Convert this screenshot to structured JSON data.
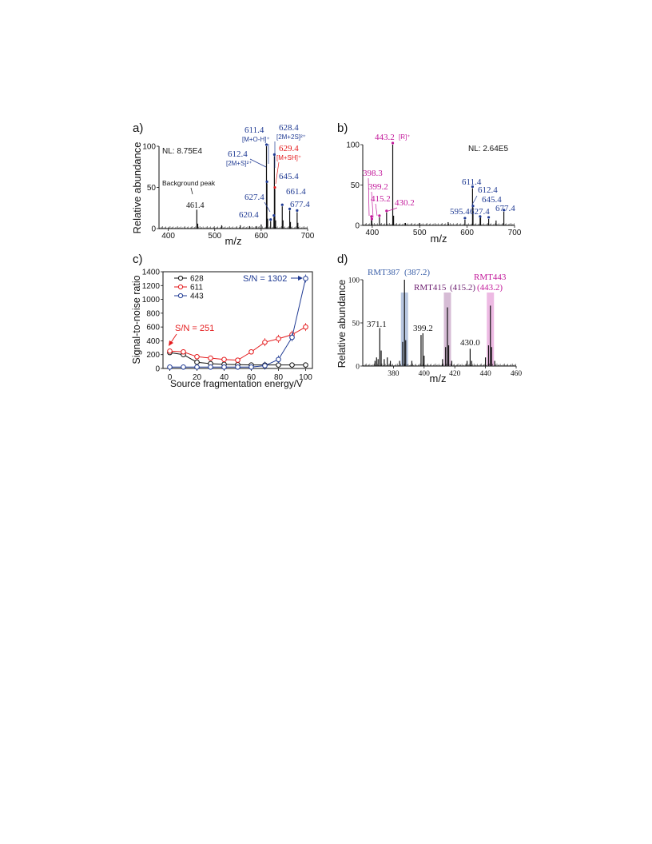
{
  "panel_labels": [
    "a)",
    "b)",
    "c)",
    "d)"
  ],
  "colors": {
    "black": "#111111",
    "blue": "#1f3a93",
    "red": "#e41a1c",
    "magenta": "#c2189a",
    "purple": "#6a1b6e",
    "band_blue": "#9fb3d6",
    "band_purple": "#c8a6c7",
    "band_pink": "#e7a3d9"
  },
  "chart_data": [
    {
      "panel": "a)",
      "type": "line",
      "subtype": "mass-spectrum",
      "xlabel": "m/z",
      "ylabel": "Relative abundance",
      "xlim": [
        380,
        700
      ],
      "ylim": [
        0,
        100
      ],
      "xticks": [
        400,
        500,
        600,
        700
      ],
      "yticks": [
        0,
        50,
        100
      ],
      "note": "NL: 8.75E4",
      "peaks": [
        {
          "x": 461.4,
          "y": 23
        },
        {
          "x": 463.4,
          "y": 6
        },
        {
          "x": 515,
          "y": 4
        },
        {
          "x": 555,
          "y": 4
        },
        {
          "x": 575,
          "y": 3
        },
        {
          "x": 590,
          "y": 3
        },
        {
          "x": 600,
          "y": 5
        },
        {
          "x": 611.4,
          "y": 100
        },
        {
          "x": 612.4,
          "y": 55
        },
        {
          "x": 614,
          "y": 12
        },
        {
          "x": 620.4,
          "y": 9
        },
        {
          "x": 627.4,
          "y": 14
        },
        {
          "x": 628.4,
          "y": 88
        },
        {
          "x": 629.4,
          "y": 48
        },
        {
          "x": 631,
          "y": 10
        },
        {
          "x": 645.4,
          "y": 27
        },
        {
          "x": 647,
          "y": 10
        },
        {
          "x": 661.4,
          "y": 22
        },
        {
          "x": 663,
          "y": 8
        },
        {
          "x": 677.4,
          "y": 20
        },
        {
          "x": 679,
          "y": 7
        }
      ],
      "annotations": [
        {
          "text": "Background peak",
          "color": "black"
        },
        {
          "text": "461.4",
          "color": "black"
        },
        {
          "text": "611.4",
          "color": "blue"
        },
        {
          "text": "[M+O-H]⁺",
          "color": "blue"
        },
        {
          "text": "628.4",
          "color": "blue"
        },
        {
          "text": "[2M+2S]²⁺",
          "color": "blue"
        },
        {
          "text": "612.4",
          "color": "blue"
        },
        {
          "text": "[2M+S]²⁺",
          "color": "blue"
        },
        {
          "text": "629.4",
          "color": "red"
        },
        {
          "text": "[M+SH]⁺",
          "color": "red"
        },
        {
          "text": "645.4",
          "color": "blue"
        },
        {
          "text": "627.4",
          "color": "blue"
        },
        {
          "text": "661.4",
          "color": "blue"
        },
        {
          "text": "677.4",
          "color": "blue"
        },
        {
          "text": "620.4",
          "color": "blue"
        }
      ]
    },
    {
      "panel": "b)",
      "type": "line",
      "subtype": "mass-spectrum",
      "xlabel": "m/z",
      "ylabel": "",
      "xlim": [
        380,
        700
      ],
      "ylim": [
        0,
        100
      ],
      "xticks": [
        400,
        500,
        600,
        700
      ],
      "yticks": [
        0,
        50,
        100
      ],
      "note": "NL: 2.64E5",
      "peaks": [
        {
          "x": 398.3,
          "y": 9
        },
        {
          "x": 399.2,
          "y": 6
        },
        {
          "x": 415.2,
          "y": 10
        },
        {
          "x": 430.2,
          "y": 16
        },
        {
          "x": 443.2,
          "y": 100
        },
        {
          "x": 445,
          "y": 12
        },
        {
          "x": 470,
          "y": 3
        },
        {
          "x": 500,
          "y": 3
        },
        {
          "x": 560,
          "y": 4
        },
        {
          "x": 595.4,
          "y": 7
        },
        {
          "x": 611.4,
          "y": 46
        },
        {
          "x": 612.4,
          "y": 22
        },
        {
          "x": 627.4,
          "y": 9
        },
        {
          "x": 628.4,
          "y": 12
        },
        {
          "x": 645.4,
          "y": 8
        },
        {
          "x": 661,
          "y": 6
        },
        {
          "x": 677.4,
          "y": 17
        }
      ],
      "annotations": [
        {
          "text": "443.2",
          "color": "magenta"
        },
        {
          "text": "[R]⁺",
          "color": "magenta"
        },
        {
          "text": "398.3",
          "color": "magenta"
        },
        {
          "text": "399.2",
          "color": "magenta"
        },
        {
          "text": "415.2",
          "color": "magenta"
        },
        {
          "text": "430.2",
          "color": "magenta"
        },
        {
          "text": "611.4",
          "color": "blue"
        },
        {
          "text": "612.4",
          "color": "blue"
        },
        {
          "text": "595.4",
          "color": "blue"
        },
        {
          "text": "627.4",
          "color": "blue"
        },
        {
          "text": "645.4",
          "color": "blue"
        },
        {
          "text": "677.4",
          "color": "blue"
        }
      ]
    },
    {
      "panel": "c)",
      "type": "line",
      "xlabel": "Source fragmentation energy/V",
      "ylabel": "Signal-to-noise ratio",
      "xlim": [
        -5,
        105
      ],
      "ylim": [
        0,
        1400
      ],
      "xticks": [
        0,
        20,
        40,
        60,
        80,
        100
      ],
      "yticks": [
        0,
        200,
        400,
        600,
        800,
        1000,
        1200,
        1400
      ],
      "x": [
        0,
        10,
        20,
        30,
        40,
        50,
        60,
        70,
        80,
        90,
        100
      ],
      "legend_position": "top-left",
      "series": [
        {
          "name": "628",
          "color": "black",
          "values": [
            230,
            200,
            90,
            70,
            60,
            55,
            50,
            50,
            50,
            50,
            50
          ]
        },
        {
          "name": "611",
          "color": "red",
          "values": [
            251,
            240,
            170,
            150,
            130,
            120,
            240,
            380,
            430,
            490,
            600
          ]
        },
        {
          "name": "443",
          "color": "blue",
          "values": [
            20,
            20,
            20,
            20,
            20,
            20,
            20,
            40,
            130,
            450,
            1302
          ]
        }
      ],
      "annotations": [
        {
          "text": "S/N = 251",
          "color": "red"
        },
        {
          "text": "S/N = 1302",
          "color": "blue"
        }
      ]
    },
    {
      "panel": "d)",
      "type": "line",
      "subtype": "mass-spectrum",
      "xlabel": "m/z",
      "ylabel": "Relative abundance",
      "xlim": [
        360,
        460
      ],
      "ylim": [
        0,
        100
      ],
      "xticks": [
        380,
        400,
        420,
        440,
        460
      ],
      "yticks": [
        0,
        50,
        100
      ],
      "peaks": [
        {
          "x": 368,
          "y": 6
        },
        {
          "x": 369,
          "y": 10
        },
        {
          "x": 370,
          "y": 8
        },
        {
          "x": 371.1,
          "y": 44
        },
        {
          "x": 372,
          "y": 18
        },
        {
          "x": 374,
          "y": 8
        },
        {
          "x": 376,
          "y": 10
        },
        {
          "x": 378,
          "y": 6
        },
        {
          "x": 384,
          "y": 6
        },
        {
          "x": 386,
          "y": 28
        },
        {
          "x": 387.2,
          "y": 100
        },
        {
          "x": 388,
          "y": 30
        },
        {
          "x": 392,
          "y": 6
        },
        {
          "x": 398,
          "y": 36
        },
        {
          "x": 399.2,
          "y": 38
        },
        {
          "x": 400,
          "y": 12
        },
        {
          "x": 412,
          "y": 8
        },
        {
          "x": 414,
          "y": 22
        },
        {
          "x": 415.2,
          "y": 68
        },
        {
          "x": 416,
          "y": 24
        },
        {
          "x": 418,
          "y": 6
        },
        {
          "x": 428,
          "y": 6
        },
        {
          "x": 430.0,
          "y": 20
        },
        {
          "x": 431,
          "y": 6
        },
        {
          "x": 440,
          "y": 10
        },
        {
          "x": 442,
          "y": 24
        },
        {
          "x": 443.2,
          "y": 70
        },
        {
          "x": 444,
          "y": 22
        },
        {
          "x": 446,
          "y": 6
        }
      ],
      "highlight_bands": [
        {
          "x": 387.2,
          "color": "band_blue"
        },
        {
          "x": 415.2,
          "color": "band_purple"
        },
        {
          "x": 443.2,
          "color": "band_pink"
        }
      ],
      "annotations": [
        {
          "text": "RMT387",
          "color": "blue"
        },
        {
          "text": "(387.2)",
          "color": "blue"
        },
        {
          "text": "RMT415",
          "color": "purple"
        },
        {
          "text": "(415.2)",
          "color": "purple"
        },
        {
          "text": "RMT443",
          "color": "magenta"
        },
        {
          "text": "(443.2)",
          "color": "magenta"
        },
        {
          "text": "371.1",
          "color": "black"
        },
        {
          "text": "399.2",
          "color": "black"
        },
        {
          "text": "430.0",
          "color": "black"
        }
      ]
    }
  ]
}
